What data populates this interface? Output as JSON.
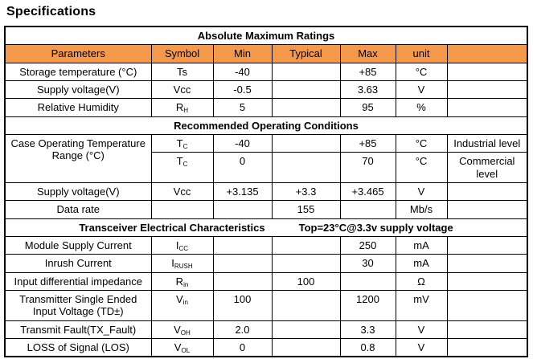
{
  "page_title": "Specifications",
  "colors": {
    "header_bg": "#F4994A",
    "border": "#000000",
    "text": "#000000",
    "background": "#FFFFFF"
  },
  "table": {
    "columns": [
      "Parameters",
      "Symbol",
      "Min",
      "Typical",
      "Max",
      "unit",
      ""
    ],
    "rows": [
      {
        "type": "section",
        "label": "Absolute Maximum Ratings"
      },
      {
        "type": "header"
      },
      {
        "type": "data",
        "cells": [
          {
            "t": "Storage temperature (°C)",
            "cls": "param"
          },
          {
            "t": "Ts"
          },
          {
            "t": "-40"
          },
          {
            "t": ""
          },
          {
            "t": "+85"
          },
          {
            "t": "°C"
          },
          {
            "t": "",
            "cls": "note"
          }
        ]
      },
      {
        "type": "data",
        "cells": [
          {
            "t": "Supply voltage(V)",
            "cls": "param"
          },
          {
            "t": "Vcc"
          },
          {
            "t": "-0.5"
          },
          {
            "t": ""
          },
          {
            "t": "3.63"
          },
          {
            "t": "V"
          },
          {
            "t": "",
            "cls": "note"
          }
        ]
      },
      {
        "type": "data",
        "cells": [
          {
            "t": "Relative Humidity",
            "cls": "param"
          },
          {
            "t": "R",
            "sub": "H"
          },
          {
            "t": "5"
          },
          {
            "t": ""
          },
          {
            "t": "95"
          },
          {
            "t": "%"
          },
          {
            "t": "",
            "cls": "note"
          }
        ]
      },
      {
        "type": "section",
        "label": "Recommended Operating Conditions"
      },
      {
        "type": "data",
        "cells": [
          {
            "t": "Case Operating Temperature Range (°C)",
            "cls": "param justify param-span",
            "rowspan": 2
          },
          {
            "t": "T",
            "sub": "C"
          },
          {
            "t": "-40"
          },
          {
            "t": ""
          },
          {
            "t": "+85"
          },
          {
            "t": "°C"
          },
          {
            "t": "Industrial level",
            "cls": "note"
          }
        ]
      },
      {
        "type": "data",
        "cells": [
          {
            "t": "T",
            "sub": "C"
          },
          {
            "t": "0"
          },
          {
            "t": ""
          },
          {
            "t": "70"
          },
          {
            "t": "°C"
          },
          {
            "t": "Commercial level",
            "cls": "note"
          }
        ]
      },
      {
        "type": "data",
        "cells": [
          {
            "t": "Supply voltage(V)",
            "cls": "param"
          },
          {
            "t": "Vcc"
          },
          {
            "t": "+3.135"
          },
          {
            "t": "+3.3"
          },
          {
            "t": "+3.465"
          },
          {
            "t": "V"
          },
          {
            "t": "",
            "cls": "note"
          }
        ]
      },
      {
        "type": "data",
        "cells": [
          {
            "t": "Data rate",
            "cls": "param"
          },
          {
            "t": ""
          },
          {
            "t": ""
          },
          {
            "t": "155"
          },
          {
            "t": ""
          },
          {
            "t": "Mb/s"
          },
          {
            "t": "",
            "cls": "note"
          }
        ]
      },
      {
        "type": "section",
        "label": "Transceiver Electrical Characteristics",
        "note": "Top=23°C@3.3v supply voltage"
      },
      {
        "type": "data",
        "cells": [
          {
            "t": "Module Supply Current",
            "cls": "param"
          },
          {
            "t": "I",
            "sub": "CC"
          },
          {
            "t": ""
          },
          {
            "t": ""
          },
          {
            "t": "250"
          },
          {
            "t": "mA"
          },
          {
            "t": "",
            "cls": "note"
          }
        ]
      },
      {
        "type": "data",
        "cells": [
          {
            "t": "Inrush Current",
            "cls": "param"
          },
          {
            "t": "I",
            "sub": "RUSH"
          },
          {
            "t": ""
          },
          {
            "t": ""
          },
          {
            "t": "30"
          },
          {
            "t": "mA"
          },
          {
            "t": "",
            "cls": "note"
          }
        ]
      },
      {
        "type": "data",
        "cells": [
          {
            "t": "Input differential impedance",
            "cls": "param"
          },
          {
            "t": "R",
            "sub": "in"
          },
          {
            "t": ""
          },
          {
            "t": "100"
          },
          {
            "t": ""
          },
          {
            "t": "Ω"
          },
          {
            "t": "",
            "cls": "note"
          }
        ]
      },
      {
        "type": "data",
        "cells": [
          {
            "t": "Transmitter Single Ended Input Voltage (TD±)",
            "cls": "param justify"
          },
          {
            "t": "V",
            "sub": "in"
          },
          {
            "t": "100"
          },
          {
            "t": ""
          },
          {
            "t": "1200"
          },
          {
            "t": "mV"
          },
          {
            "t": "",
            "cls": "note"
          }
        ]
      },
      {
        "type": "data",
        "cells": [
          {
            "t": "Transmit Fault(TX_Fault)",
            "cls": "param"
          },
          {
            "t": "V",
            "sub": "OH"
          },
          {
            "t": "2.0"
          },
          {
            "t": ""
          },
          {
            "t": "3.3"
          },
          {
            "t": "V"
          },
          {
            "t": "",
            "cls": "note"
          }
        ]
      },
      {
        "type": "data",
        "cells": [
          {
            "t": "LOSS of Signal (LOS)",
            "cls": "param"
          },
          {
            "t": "V",
            "sub": "OL"
          },
          {
            "t": "0"
          },
          {
            "t": ""
          },
          {
            "t": "0.8"
          },
          {
            "t": "V"
          },
          {
            "t": "",
            "cls": "note"
          }
        ]
      }
    ]
  }
}
